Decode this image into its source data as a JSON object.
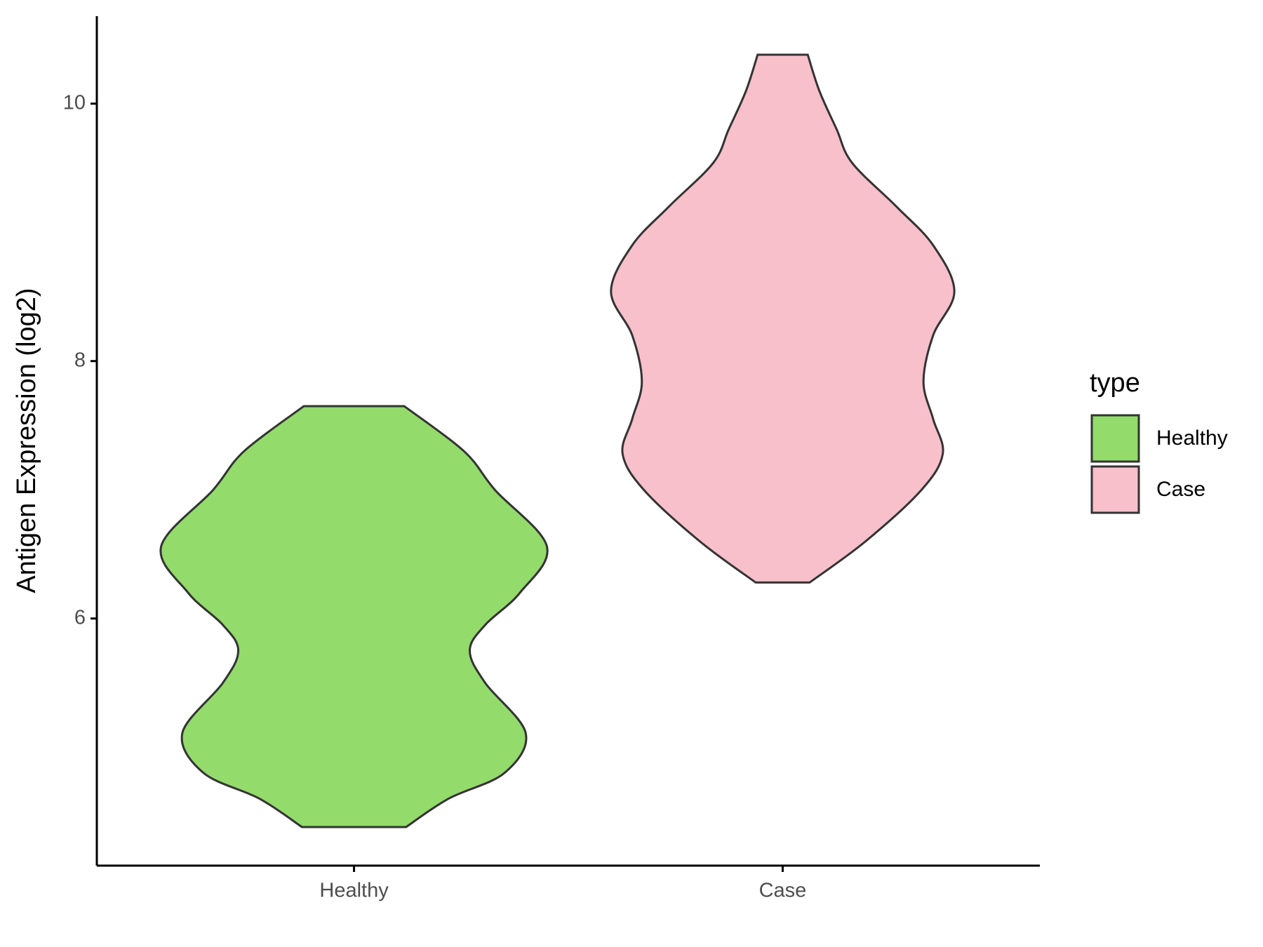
{
  "chart_data": {
    "type": "violin",
    "y_label": "Antigen Expression (log2)",
    "categories": [
      "Healthy",
      "Case"
    ],
    "series": [
      {
        "name": "Healthy",
        "color": "#93db6b",
        "y": [
          4.38,
          4.6,
          4.8,
          5.11,
          5.5,
          5.75,
          5.95,
          6.2,
          6.56,
          7.0,
          7.3,
          7.65
        ],
        "density": [
          0.27,
          0.49,
          0.78,
          0.89,
          0.68,
          0.6,
          0.68,
          0.86,
          1.0,
          0.73,
          0.57,
          0.26
        ]
      },
      {
        "name": "Case",
        "color": "#f7c0cb",
        "y": [
          6.28,
          6.6,
          7.0,
          7.28,
          7.55,
          7.84,
          8.2,
          8.54,
          8.9,
          9.2,
          9.54,
          9.8,
          10.1,
          10.38
        ],
        "density": [
          0.14,
          0.43,
          0.72,
          0.83,
          0.78,
          0.73,
          0.78,
          0.89,
          0.78,
          0.59,
          0.36,
          0.28,
          0.19,
          0.13
        ]
      }
    ],
    "ylim": [
      4.08,
      10.68
    ],
    "yticks": [
      6,
      8,
      10
    ],
    "legend_title": "type",
    "legend_position": "right"
  }
}
